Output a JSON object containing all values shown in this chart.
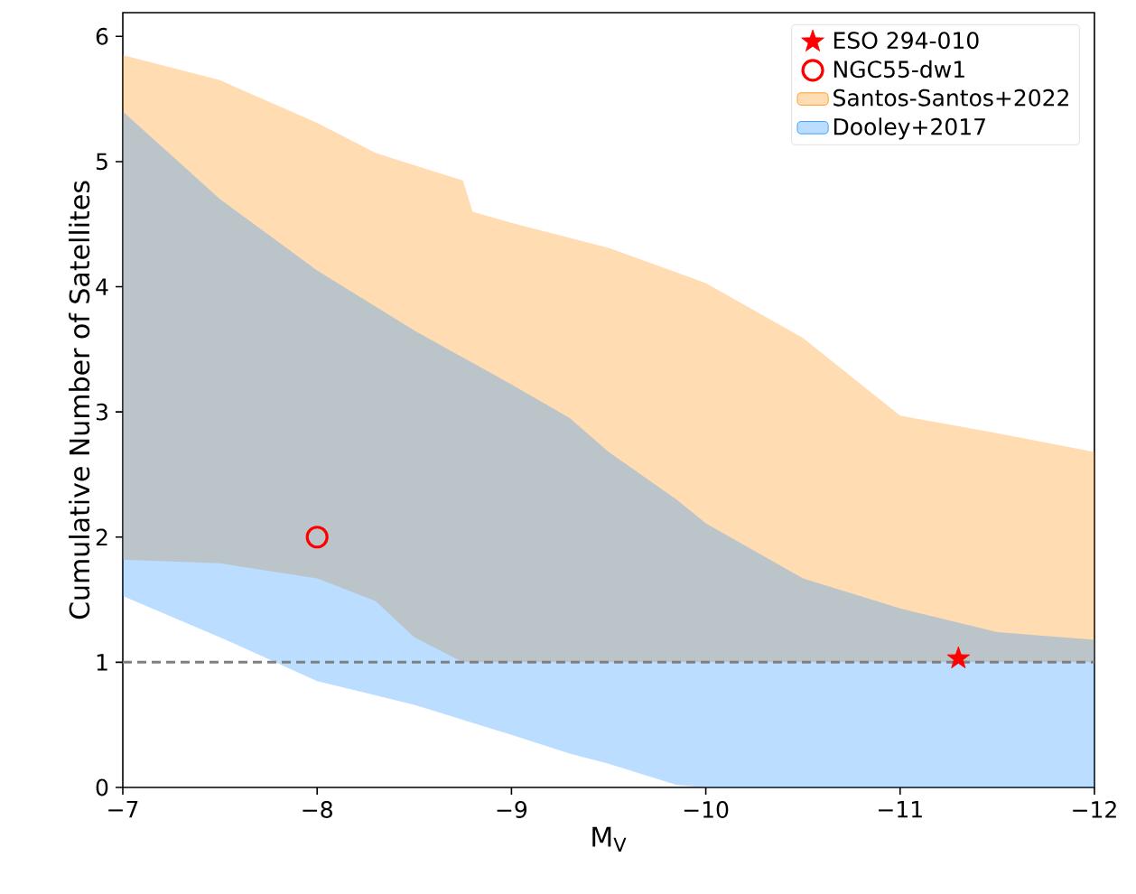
{
  "chart_data": {
    "type": "area",
    "xlabel": "M$_{V}$",
    "ylabel": "Cumulative Number of Satellites",
    "xlim": [
      -7,
      -12
    ],
    "ylim": [
      0,
      6.19
    ],
    "xticks": [
      {
        "value": -7,
        "label": "−7"
      },
      {
        "value": -8,
        "label": "−8"
      },
      {
        "value": -9,
        "label": "−9"
      },
      {
        "value": -10,
        "label": "−10"
      },
      {
        "value": -11,
        "label": "−11"
      },
      {
        "value": -12,
        "label": "−12"
      }
    ],
    "yticks": [
      0,
      1,
      2,
      3,
      4,
      5,
      6
    ],
    "legend": "top right",
    "grid": false,
    "series": [
      {
        "name": "ESO 294-010",
        "type": "scatter",
        "marker": "star",
        "color": "#ff0000",
        "x": [
          -11.3
        ],
        "values": [
          1.03
        ]
      },
      {
        "name": "NGC55-dw1",
        "type": "scatter",
        "marker": "circle",
        "color": "#ff0000",
        "x": [
          -8
        ],
        "values": [
          2
        ]
      },
      {
        "name": "Santos-Santos+2022",
        "color": "#ff8c00",
        "x": [
          -7,
          -7.5,
          -8,
          -8.3,
          -8.5,
          -8.75,
          -8.8,
          -9,
          -9.5,
          -10,
          -10.5,
          -11,
          -11.5,
          -12
        ],
        "values": [
          null,
          null,
          null,
          null,
          null,
          null,
          null,
          null,
          null,
          null,
          null,
          null,
          null,
          null
        ],
        "lower": [
          1.82,
          1.79,
          1.67,
          1.49,
          1.2,
          1.0,
          1.0,
          1.0,
          1.0,
          1.0,
          1.0,
          1.0,
          1.0,
          1.0
        ],
        "upper": [
          5.85,
          5.65,
          5.31,
          5.07,
          4.97,
          4.85,
          4.6,
          4.51,
          4.31,
          4.03,
          3.59,
          2.97,
          2.83,
          2.68
        ]
      },
      {
        "name": "Dooley+2017",
        "color": "#1e90ff",
        "x": [
          -7,
          -7.5,
          -8,
          -8.5,
          -9,
          -9.3,
          -9.5,
          -9.85,
          -10,
          -10.5,
          -11,
          -11.5,
          -12
        ],
        "values": [
          null,
          null,
          null,
          null,
          null,
          null,
          null,
          null,
          null,
          null,
          null,
          null,
          null
        ],
        "lower": [
          1.53,
          1.2,
          0.85,
          0.66,
          0.42,
          0.27,
          0.19,
          0.02,
          0,
          0,
          0,
          0,
          0
        ],
        "upper": [
          5.4,
          4.7,
          4.13,
          3.65,
          3.22,
          2.95,
          2.68,
          2.3,
          2.11,
          1.67,
          1.43,
          1.24,
          1.18
        ]
      }
    ],
    "ref_lines": [
      {
        "axis": "y",
        "value": 1,
        "color": "#808080",
        "line_style": "dashed"
      }
    ]
  }
}
